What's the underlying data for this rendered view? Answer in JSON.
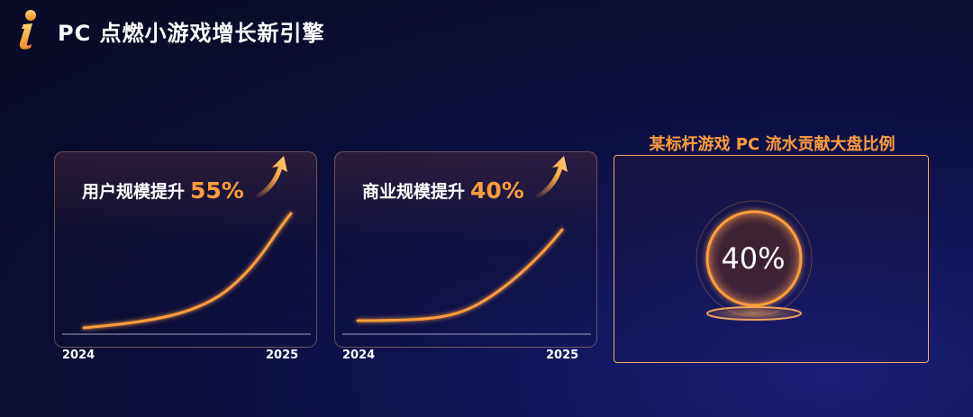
{
  "header": {
    "title": "PC 点燃小游戏增长新引擎",
    "logo_icon": "info-i-icon"
  },
  "cards": [
    {
      "label": "用户规模提升",
      "value": "55%",
      "x_start": "2024",
      "x_end": "2025",
      "icon": "growth-arrow-icon"
    },
    {
      "label": "商业规模提升",
      "value": "40%",
      "x_start": "2024",
      "x_end": "2025",
      "icon": "growth-arrow-icon"
    }
  ],
  "share_panel": {
    "title": "某标杆游戏 PC 流水贡献大盘比例",
    "value": "40%"
  },
  "colors": {
    "accent": "#ff9d3a",
    "background": "#0b0d33"
  }
}
